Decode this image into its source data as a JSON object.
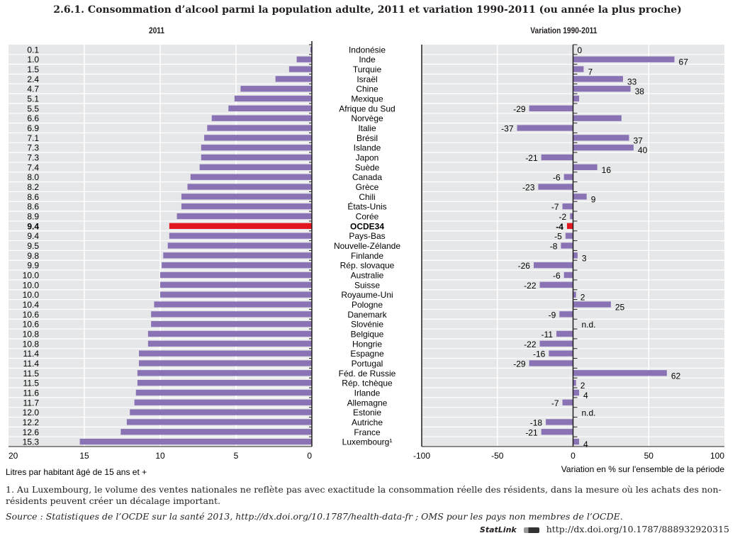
{
  "chart_data": {
    "type": "bar",
    "title": "2.6.1.  Consommation d’alcool parmi la population adulte, 2011 et variation 1990-2011 (ou année la plus proche)",
    "panels": [
      {
        "subtitle": "2011",
        "xlabel": "Litres par habitant âgé de 15 ans et +",
        "xlim": [
          20,
          0
        ],
        "xticks": [
          "20",
          "15",
          "10",
          "5",
          "0"
        ],
        "orientation": "horizontal",
        "grid": true
      },
      {
        "subtitle": "Variation 1990-2011",
        "xlabel": "Variation en % sur l'ensemble de la période",
        "xlim": [
          -100,
          100
        ],
        "xticks": [
          "-100",
          "-50",
          "0",
          "50",
          "100"
        ],
        "orientation": "horizontal",
        "grid": true
      }
    ],
    "categories": [
      "Indonésie",
      "Inde",
      "Turquie",
      "Israël",
      "Chine",
      "Mexique",
      "Afrique du Sud",
      "Norvège",
      "Italie",
      "Brésil",
      "Islande",
      "Japon",
      "Suède",
      "Canada",
      "Grèce",
      "Chili",
      "États-Unis",
      "Corée",
      "OCDE34",
      "Pays-Bas",
      "Nouvelle-Zélande",
      "Finlande",
      "Rép. slovaque",
      "Australie",
      "Suisse",
      "Royaume-Uni",
      "Pologne",
      "Danemark",
      "Slovénie",
      "Belgique",
      "Hongrie",
      "Espagne",
      "Portugal",
      "Féd. de Russie",
      "Rép. tchèque",
      "Irlande",
      "Allemagne",
      "Estonie",
      "Autriche",
      "France",
      "Luxembourg¹"
    ],
    "highlight": "OCDE34",
    "series": [
      {
        "name": "2011",
        "values": [
          0.1,
          1.0,
          1.5,
          2.4,
          4.7,
          5.1,
          5.5,
          6.6,
          6.9,
          7.1,
          7.3,
          7.3,
          7.4,
          8.0,
          8.2,
          8.6,
          8.6,
          8.9,
          9.4,
          9.4,
          9.5,
          9.8,
          9.9,
          10.0,
          10.0,
          10.0,
          10.4,
          10.6,
          10.6,
          10.8,
          10.8,
          11.4,
          11.4,
          11.5,
          11.5,
          11.6,
          11.7,
          12.0,
          12.2,
          12.6,
          15.3
        ],
        "labels": [
          "0.1",
          "1.0",
          "1.5",
          "2.4",
          "4.7",
          "5.1",
          "5.5",
          "6.6",
          "6.9",
          "7.1",
          "7.3",
          "7.3",
          "7.4",
          "8.0",
          "8.2",
          "8.6",
          "8.6",
          "8.9",
          "9.4",
          "9.4",
          "9.5",
          "9.8",
          "9.9",
          "10.0",
          "10.0",
          "10.0",
          "10.4",
          "10.6",
          "10.6",
          "10.8",
          "10.8",
          "11.4",
          "11.4",
          "11.5",
          "11.5",
          "11.6",
          "11.7",
          "12.0",
          "12.2",
          "12.6",
          "15.3"
        ]
      },
      {
        "name": "Variation 1990-2011",
        "values": [
          0,
          67,
          7,
          33,
          38,
          4,
          -29,
          32,
          -37,
          37,
          40,
          -21,
          16,
          -6,
          -23,
          9,
          -7,
          -2,
          -4,
          -5,
          -8,
          3,
          -26,
          -6,
          -22,
          2,
          25,
          -9,
          null,
          -11,
          -22,
          -16,
          -29,
          62,
          2,
          4,
          -7,
          null,
          -18,
          -21,
          4
        ],
        "labels": [
          "0",
          "67",
          "7",
          "33",
          "38",
          "",
          "-29",
          "",
          "-37",
          "37",
          "40",
          "-21",
          "16",
          "-6",
          "-23",
          "9",
          "-7",
          "-2",
          "-4",
          "-5",
          "-8",
          "3",
          "-26",
          "-6",
          "-22",
          "2",
          "25",
          "-9",
          "n.d.",
          "-11",
          "-22",
          "-16",
          "-29",
          "62",
          "2",
          "4",
          "-7",
          "n.d.",
          "-18",
          "-21",
          "4"
        ]
      }
    ],
    "colors": {
      "bar": "#8a73b5",
      "highlight": "#e1161f",
      "plot_bg": "#e6e7e8",
      "grid": "#ffffff",
      "axis": "#231f20"
    }
  },
  "footnote": "1.  Au Luxembourg, le volume des ventes nationales ne reflète pas avec exactitude la consommation réelle des résidents, dans la mesure où les achats des non-résidents peuvent créer un décalage important.",
  "source_label": "Source :",
  "source_text": "Statistiques de l’OCDE sur la santé 2013, http://dx.doi.org/10.1787/health-data-fr ; OMS pour les pays non membres de l’OCDE.",
  "statlink_label": "StatLink",
  "statlink_url": "http://dx.doi.org/10.1787/888932920315"
}
